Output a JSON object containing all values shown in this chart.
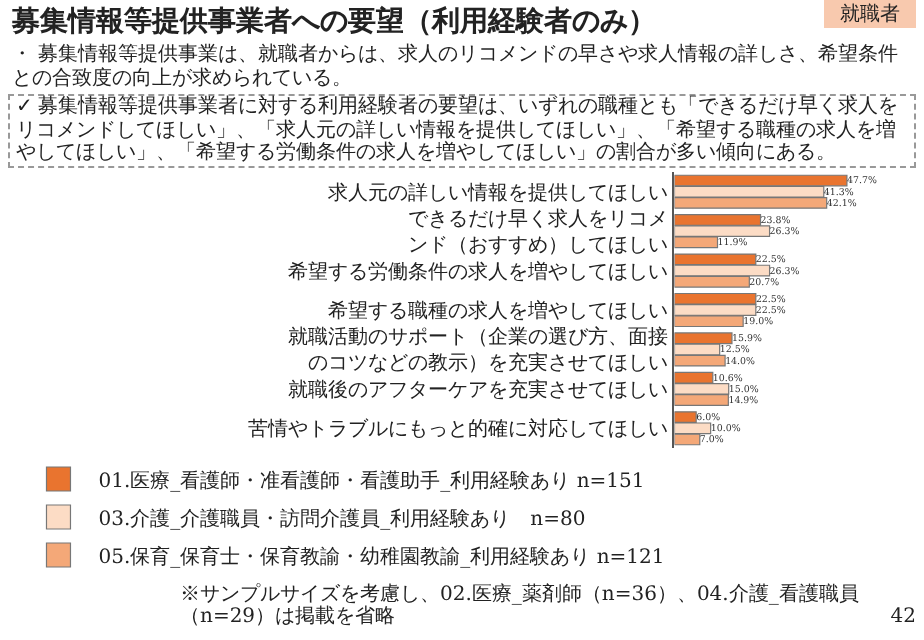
{
  "chart_data": {
    "type": "bar",
    "orientation": "horizontal",
    "title": "募集情報等提供事業者への要望（利用経験者のみ）",
    "subtitle": "・ 募集情報等提供事業は、就職者からは、求人のリコメンドの早さや求人情報の詳しさ、希望条件との合致度の向上が求められている。",
    "annotations": [
      "就職者",
      "✓ 募集情報等提供事業者に対する利用経験者の要望は、いずれの職種とも「できるだけ早く求人をリコメンドしてほしい」、「求人元の詳しい情報を提供してほしい」、「希望する職種の求人を増やしてほしい」、「希望する労働条件の求人を増やしてほしい」の割合が多い傾向にある。",
      "※サンプルサイズを考慮し、02.医療_薬剤師（n=36）、04.介護_看護職員（n=29）は掲載を省略",
      "42"
    ],
    "categories": [
      "求人元の詳しい情報を提供してほしい",
      "できるだけ早く求人をリコメンド（おすすめ）してほしい",
      "希望する労働条件の求人を増やしてほしい",
      "希望する職種の求人を増やしてほしい",
      "就職活動のサポート（企業の選び方、面接のコツなどの教示）を充実させてほしい",
      "就職後のアフターケアを充実させてほしい",
      "苦情やトラブルにもっと的確に対応してほしい"
    ],
    "series": [
      {
        "name": "01.医療_看護師・准看護師・看護助手_利用経験あり n=151",
        "color": "#e9742f",
        "values": [
          47.7,
          23.8,
          22.5,
          22.5,
          15.9,
          10.6,
          6.0
        ],
        "value_labels": [
          "47.7%",
          "23.8%",
          "22.5%",
          "22.5%",
          "15.9%",
          "10.6%",
          "6.0%"
        ]
      },
      {
        "name": "03.介護_介護職員・訪問介護員_利用経験あり　n=80",
        "color": "#fcdcc5",
        "values": [
          41.3,
          26.3,
          26.3,
          22.5,
          12.5,
          15.0,
          10.0
        ],
        "value_labels": [
          "41.3%",
          "26.3%",
          "26.3%",
          "22.5%",
          "12.5%",
          "15.0%",
          "10.0%"
        ]
      },
      {
        "name": "05.保育_保育士・保育教諭・幼稚園教諭_利用経験あり n=121",
        "color": "#f4a878",
        "values": [
          42.1,
          11.9,
          20.7,
          19.0,
          14.0,
          14.9,
          7.0
        ],
        "value_labels": [
          "42.1%",
          "11.9%",
          "20.7%",
          "19.0%",
          "14.0%",
          "14.9%",
          "7.0%"
        ]
      }
    ],
    "tick_labels": "y",
    "legend": "bottom",
    "grid": false
  }
}
